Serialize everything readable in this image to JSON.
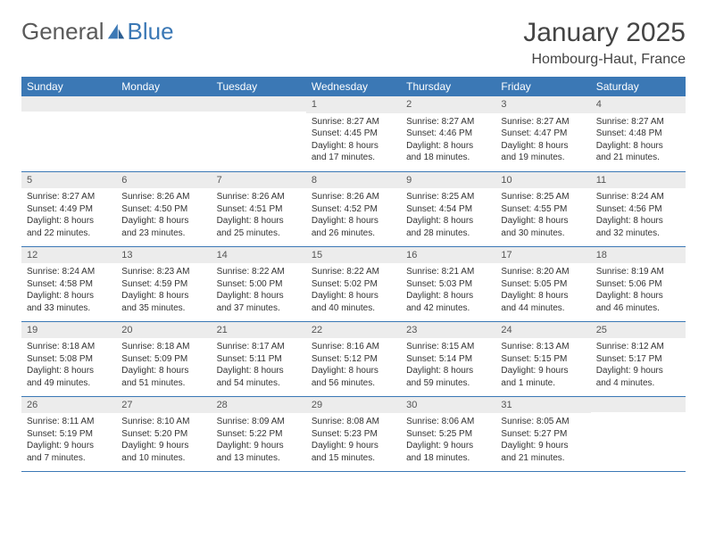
{
  "logo": {
    "text_a": "General",
    "text_b": "Blue",
    "color_gray": "#5a5a5a",
    "color_blue": "#3b78b5"
  },
  "title": "January 2025",
  "location": "Hombourg-Haut, France",
  "weekdays": [
    "Sunday",
    "Monday",
    "Tuesday",
    "Wednesday",
    "Thursday",
    "Friday",
    "Saturday"
  ],
  "colors": {
    "header_bg": "#3b78b5",
    "header_fg": "#ffffff",
    "daynum_bg": "#ececec",
    "border": "#3b78b5",
    "text": "#333333"
  },
  "typography": {
    "title_size_pt": 22,
    "location_size_pt": 12,
    "weekday_size_pt": 9,
    "body_size_pt": 7.5
  },
  "weeks": [
    [
      null,
      null,
      null,
      {
        "n": "1",
        "sunrise": "8:27 AM",
        "sunset": "4:45 PM",
        "daylight": "8 hours and 17 minutes."
      },
      {
        "n": "2",
        "sunrise": "8:27 AM",
        "sunset": "4:46 PM",
        "daylight": "8 hours and 18 minutes."
      },
      {
        "n": "3",
        "sunrise": "8:27 AM",
        "sunset": "4:47 PM",
        "daylight": "8 hours and 19 minutes."
      },
      {
        "n": "4",
        "sunrise": "8:27 AM",
        "sunset": "4:48 PM",
        "daylight": "8 hours and 21 minutes."
      }
    ],
    [
      {
        "n": "5",
        "sunrise": "8:27 AM",
        "sunset": "4:49 PM",
        "daylight": "8 hours and 22 minutes."
      },
      {
        "n": "6",
        "sunrise": "8:26 AM",
        "sunset": "4:50 PM",
        "daylight": "8 hours and 23 minutes."
      },
      {
        "n": "7",
        "sunrise": "8:26 AM",
        "sunset": "4:51 PM",
        "daylight": "8 hours and 25 minutes."
      },
      {
        "n": "8",
        "sunrise": "8:26 AM",
        "sunset": "4:52 PM",
        "daylight": "8 hours and 26 minutes."
      },
      {
        "n": "9",
        "sunrise": "8:25 AM",
        "sunset": "4:54 PM",
        "daylight": "8 hours and 28 minutes."
      },
      {
        "n": "10",
        "sunrise": "8:25 AM",
        "sunset": "4:55 PM",
        "daylight": "8 hours and 30 minutes."
      },
      {
        "n": "11",
        "sunrise": "8:24 AM",
        "sunset": "4:56 PM",
        "daylight": "8 hours and 32 minutes."
      }
    ],
    [
      {
        "n": "12",
        "sunrise": "8:24 AM",
        "sunset": "4:58 PM",
        "daylight": "8 hours and 33 minutes."
      },
      {
        "n": "13",
        "sunrise": "8:23 AM",
        "sunset": "4:59 PM",
        "daylight": "8 hours and 35 minutes."
      },
      {
        "n": "14",
        "sunrise": "8:22 AM",
        "sunset": "5:00 PM",
        "daylight": "8 hours and 37 minutes."
      },
      {
        "n": "15",
        "sunrise": "8:22 AM",
        "sunset": "5:02 PM",
        "daylight": "8 hours and 40 minutes."
      },
      {
        "n": "16",
        "sunrise": "8:21 AM",
        "sunset": "5:03 PM",
        "daylight": "8 hours and 42 minutes."
      },
      {
        "n": "17",
        "sunrise": "8:20 AM",
        "sunset": "5:05 PM",
        "daylight": "8 hours and 44 minutes."
      },
      {
        "n": "18",
        "sunrise": "8:19 AM",
        "sunset": "5:06 PM",
        "daylight": "8 hours and 46 minutes."
      }
    ],
    [
      {
        "n": "19",
        "sunrise": "8:18 AM",
        "sunset": "5:08 PM",
        "daylight": "8 hours and 49 minutes."
      },
      {
        "n": "20",
        "sunrise": "8:18 AM",
        "sunset": "5:09 PM",
        "daylight": "8 hours and 51 minutes."
      },
      {
        "n": "21",
        "sunrise": "8:17 AM",
        "sunset": "5:11 PM",
        "daylight": "8 hours and 54 minutes."
      },
      {
        "n": "22",
        "sunrise": "8:16 AM",
        "sunset": "5:12 PM",
        "daylight": "8 hours and 56 minutes."
      },
      {
        "n": "23",
        "sunrise": "8:15 AM",
        "sunset": "5:14 PM",
        "daylight": "8 hours and 59 minutes."
      },
      {
        "n": "24",
        "sunrise": "8:13 AM",
        "sunset": "5:15 PM",
        "daylight": "9 hours and 1 minute."
      },
      {
        "n": "25",
        "sunrise": "8:12 AM",
        "sunset": "5:17 PM",
        "daylight": "9 hours and 4 minutes."
      }
    ],
    [
      {
        "n": "26",
        "sunrise": "8:11 AM",
        "sunset": "5:19 PM",
        "daylight": "9 hours and 7 minutes."
      },
      {
        "n": "27",
        "sunrise": "8:10 AM",
        "sunset": "5:20 PM",
        "daylight": "9 hours and 10 minutes."
      },
      {
        "n": "28",
        "sunrise": "8:09 AM",
        "sunset": "5:22 PM",
        "daylight": "9 hours and 13 minutes."
      },
      {
        "n": "29",
        "sunrise": "8:08 AM",
        "sunset": "5:23 PM",
        "daylight": "9 hours and 15 minutes."
      },
      {
        "n": "30",
        "sunrise": "8:06 AM",
        "sunset": "5:25 PM",
        "daylight": "9 hours and 18 minutes."
      },
      {
        "n": "31",
        "sunrise": "8:05 AM",
        "sunset": "5:27 PM",
        "daylight": "9 hours and 21 minutes."
      },
      null
    ]
  ],
  "labels": {
    "sunrise": "Sunrise:",
    "sunset": "Sunset:",
    "daylight": "Daylight:"
  }
}
